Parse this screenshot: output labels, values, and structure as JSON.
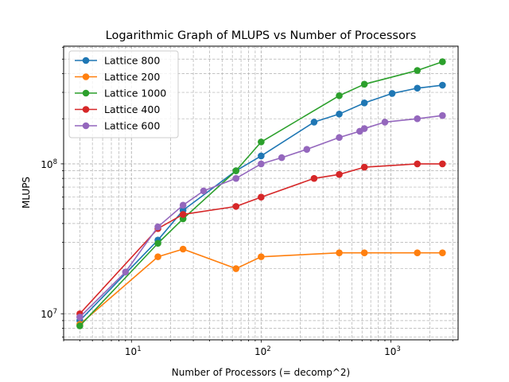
{
  "chart_data": {
    "type": "line",
    "title": "Logarithmic Graph of MLUPS vs Number of Processors",
    "xlabel": "Number of Processors (= decomp^2)",
    "ylabel": "MLUPS",
    "xscale": "log",
    "yscale": "log",
    "xlim": [
      3,
      3300
    ],
    "ylim": [
      6700000,
      610000000
    ],
    "x_ticks": [
      {
        "value": 10,
        "base": "10",
        "exp": "1"
      },
      {
        "value": 100,
        "base": "10",
        "exp": "2"
      },
      {
        "value": 1000,
        "base": "10",
        "exp": "3"
      }
    ],
    "y_ticks": [
      {
        "value": 10000000,
        "base": "10",
        "exp": "7"
      },
      {
        "value": 100000000,
        "base": "10",
        "exp": "8"
      }
    ],
    "grid": "both (major and minor), dashed",
    "legend_position": "top-left",
    "series": [
      {
        "name": "Lattice 800",
        "color": "#1f77b4",
        "x": [
          4,
          16,
          25,
          64,
          100,
          256,
          400,
          625,
          1024,
          1600,
          2500
        ],
        "y": [
          9000000,
          31000000,
          49000000,
          90000000,
          113000000,
          190000000,
          215000000,
          255000000,
          295000000,
          320000000,
          335000000
        ]
      },
      {
        "name": "Lattice 200",
        "color": "#ff7f0e",
        "x": [
          4,
          16,
          25,
          64,
          100,
          400,
          625,
          1600,
          2500
        ],
        "y": [
          8500000,
          24000000,
          27000000,
          20000000,
          24000000,
          25500000,
          25500000,
          25500000,
          25500000
        ]
      },
      {
        "name": "Lattice 1000",
        "color": "#2ca02c",
        "x": [
          4,
          16,
          25,
          64,
          100,
          400,
          625,
          1600,
          2500
        ],
        "y": [
          8300000,
          29500000,
          43000000,
          90000000,
          140000000,
          285000000,
          340000000,
          420000000,
          480000000
        ]
      },
      {
        "name": "Lattice 400",
        "color": "#d62728",
        "x": [
          4,
          16,
          25,
          64,
          100,
          256,
          400,
          625,
          1600,
          2500
        ],
        "y": [
          10000000,
          37000000,
          46000000,
          52000000,
          60000000,
          80000000,
          85000000,
          95000000,
          100000000,
          100000000
        ]
      },
      {
        "name": "Lattice 600",
        "color": "#9467bd",
        "x": [
          4,
          9,
          16,
          25,
          36,
          64,
          100,
          144,
          225,
          400,
          576,
          625,
          900,
          1600,
          2500
        ],
        "y": [
          9500000,
          19000000,
          38000000,
          53000000,
          66000000,
          80000000,
          100000000,
          110000000,
          125000000,
          150000000,
          165000000,
          172000000,
          190000000,
          200000000,
          210000000
        ]
      }
    ]
  }
}
